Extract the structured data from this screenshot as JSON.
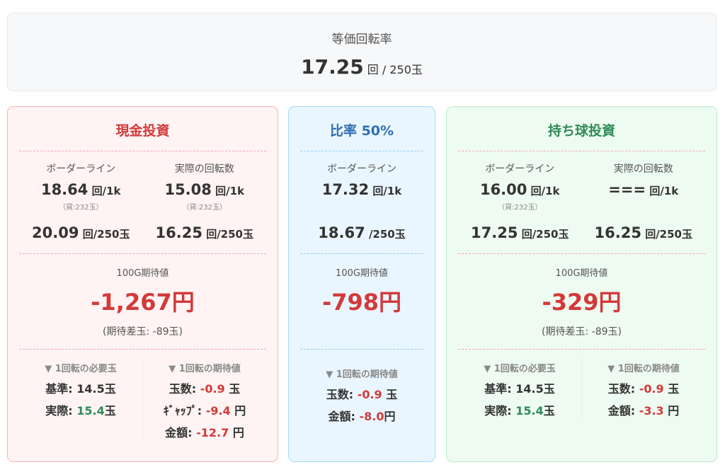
{
  "header": {
    "title": "等価回転率",
    "value": "17.25",
    "unit": "回 / 250玉"
  },
  "cards": [
    {
      "title": "現金投資",
      "border_label": "ボーダーライン",
      "actual_label": "実際の回転数",
      "border_1k": "18.64",
      "actual_1k": "15.08",
      "unit_1k": "回/1k",
      "lend_border": "（貸:232玉）",
      "lend_actual": "（貸:232玉）",
      "border_250": "20.09",
      "actual_250": "16.25",
      "unit_250": "回/250玉",
      "exp_label": "100G期待値",
      "exp_value": "-1,267円",
      "exp_sub": "(期待差玉: -89玉)",
      "need_header": "▼ 1回転の必要玉",
      "need_base_label": "基準: ",
      "need_base": "14.5",
      "need_actual_label": "実際: ",
      "need_actual": "15.4",
      "ball": "玉",
      "ev_header": "▼ 1回転の期待値",
      "ev_balls_label": "玉数: ",
      "ev_balls": "-0.9",
      "ev_balls_unit": " 玉",
      "ev_gap_label": "ｷﾞｬｯﾌﾟ: ",
      "ev_gap": "-9.4",
      "ev_gap_unit": " 円",
      "ev_money_label": "金額: ",
      "ev_money": "-12.7",
      "ev_money_unit": " 円"
    },
    {
      "title": "比率 50%",
      "border_label": "ボーダーライン",
      "border_1k": "17.32",
      "unit_1k": "回/1k",
      "border_250": "18.67",
      "unit_250": "/250玉",
      "exp_label": "100G期待値",
      "exp_value": "-798円",
      "ev_header": "▼ 1回転の期待値",
      "ev_balls_label": "玉数: ",
      "ev_balls": "-0.9",
      "ev_balls_unit": " 玉",
      "ev_money_label": "金額: ",
      "ev_money": "-8.0",
      "ev_money_unit": "円"
    },
    {
      "title": "持ち球投資",
      "border_label": "ボーダーライン",
      "actual_label": "実際の回転数",
      "border_1k": "16.00",
      "actual_1k": "===",
      "unit_1k": "回/1k",
      "lend_border": "（貸:232玉）",
      "border_250": "17.25",
      "actual_250": "16.25",
      "unit_250": "回/250玉",
      "exp_label": "100G期待値",
      "exp_value": "-329円",
      "exp_sub": "(期待差玉: -89玉)",
      "need_header": "▼ 1回転の必要玉",
      "need_base_label": "基準: ",
      "need_base": "14.5",
      "need_actual_label": "実際: ",
      "need_actual": "15.4",
      "ball": "玉",
      "ev_header": "▼ 1回転の期待値",
      "ev_balls_label": "玉数: ",
      "ev_balls": "-0.9",
      "ev_balls_unit": " 玉",
      "ev_money_label": "金額: ",
      "ev_money": "-3.3",
      "ev_money_unit": " 円"
    }
  ],
  "colors": {
    "negative": "#d23a3a",
    "positive": "#2e8b57",
    "cash": "#d23a3a",
    "ratio": "#2f6fb3",
    "held": "#2e8b57"
  }
}
